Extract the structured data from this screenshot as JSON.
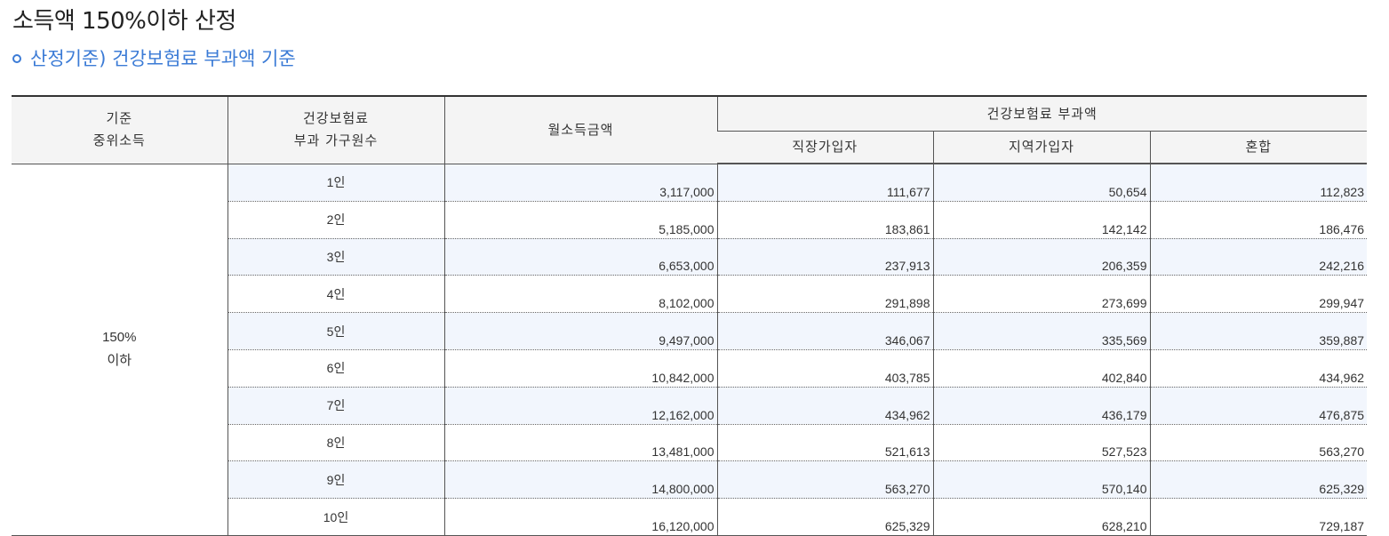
{
  "page": {
    "title": "소득액 150%이하 산정",
    "subtitle": "산정기준) 건강보험료 부과액 기준"
  },
  "table": {
    "headers": {
      "criterion": [
        "기준",
        "중위소득"
      ],
      "household": [
        "건강보험료",
        "부과 가구원수"
      ],
      "income": "월소득금액",
      "premium_group": "건강보험료 부과액",
      "employee": "직장가입자",
      "regional": "지역가입자",
      "mixed": "혼합"
    },
    "criterion_value": [
      "150%",
      "이하"
    ],
    "rows": [
      {
        "count": "1인",
        "income": "3,117,000",
        "employee": "111,677",
        "regional": "50,654",
        "mixed": "112,823"
      },
      {
        "count": "2인",
        "income": "5,185,000",
        "employee": "183,861",
        "regional": "142,142",
        "mixed": "186,476"
      },
      {
        "count": "3인",
        "income": "6,653,000",
        "employee": "237,913",
        "regional": "206,359",
        "mixed": "242,216"
      },
      {
        "count": "4인",
        "income": "8,102,000",
        "employee": "291,898",
        "regional": "273,699",
        "mixed": "299,947"
      },
      {
        "count": "5인",
        "income": "9,497,000",
        "employee": "346,067",
        "regional": "335,569",
        "mixed": "359,887"
      },
      {
        "count": "6인",
        "income": "10,842,000",
        "employee": "403,785",
        "regional": "402,840",
        "mixed": "434,962"
      },
      {
        "count": "7인",
        "income": "12,162,000",
        "employee": "434,962",
        "regional": "436,179",
        "mixed": "476,875"
      },
      {
        "count": "8인",
        "income": "13,481,000",
        "employee": "521,613",
        "regional": "527,523",
        "mixed": "563,270"
      },
      {
        "count": "9인",
        "income": "14,800,000",
        "employee": "563,270",
        "regional": "570,140",
        "mixed": "625,329"
      },
      {
        "count": "10인",
        "income": "16,120,000",
        "employee": "625,329",
        "regional": "628,210",
        "mixed": "729,187"
      }
    ]
  },
  "colors": {
    "accent": "#3b7bd6",
    "header_bg": "#f4f4f4",
    "alt_row_bg": "#f2f6fd"
  }
}
